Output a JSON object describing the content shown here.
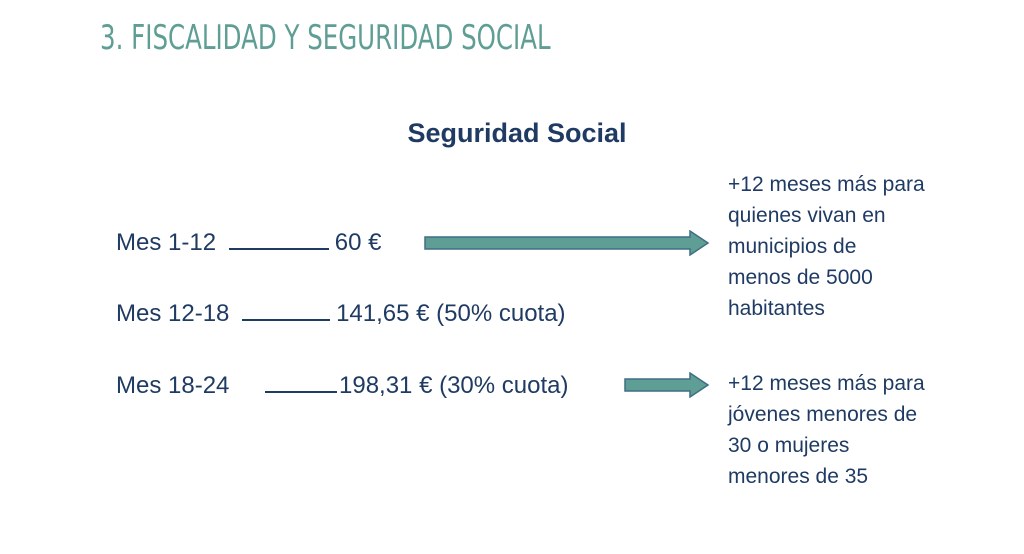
{
  "slide": {
    "title": "3. FISCALIDAD Y SEGURIDAD SOCIAL",
    "heading": "Seguridad Social"
  },
  "rows": [
    {
      "period": "Mes 1-12",
      "amount": "60 €"
    },
    {
      "period": "Mes 12-18",
      "amount": "141,65 € (50% cuota)"
    },
    {
      "period": "Mes 18-24",
      "amount": "198,31 € (30% cuota)"
    }
  ],
  "notes": [
    {
      "lines": [
        "+12 meses más para",
        "quienes vivan en",
        "municipios de",
        "menos de 5000",
        "habitantes"
      ]
    },
    {
      "lines": [
        "+12 meses más para",
        "jóvenes menores de",
        "30 o mujeres",
        "menores de 35"
      ]
    }
  ],
  "colors": {
    "title": "#5f9e94",
    "text": "#1f3b63",
    "arrow_fill": "#5f9e94",
    "arrow_stroke": "#3f6f84"
  }
}
